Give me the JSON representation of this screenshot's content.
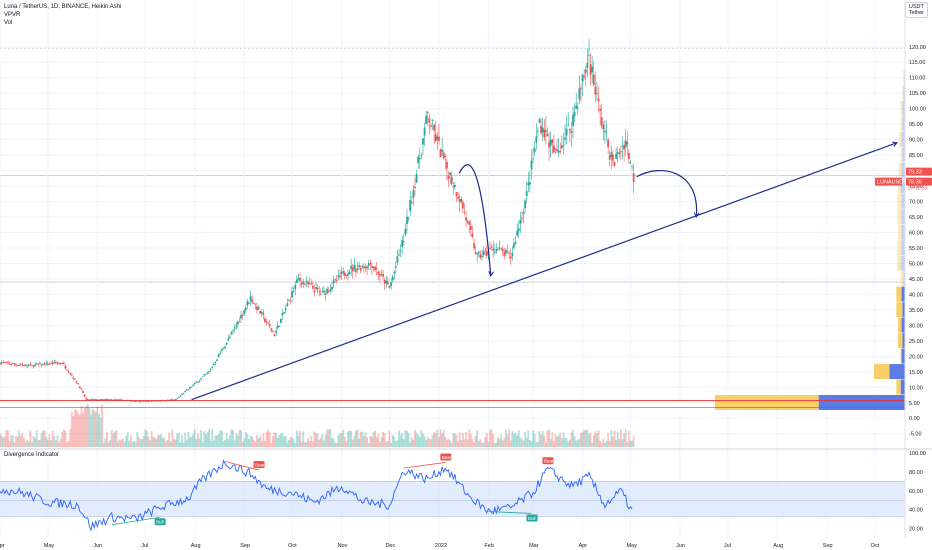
{
  "header": {
    "symbol_line": "Luna / TetherUS, 1D, BINANCE, Heikin Ashi",
    "indicator_1": "VPVR",
    "indicator_2": "Vol",
    "currency_badge_top": "USDT",
    "currency_badge_bottom": "Tether"
  },
  "colors": {
    "bull": "#26a69a",
    "bear": "#ef5350",
    "trendline": "#1c2a8c",
    "vp_blue": "#5b7be6",
    "vp_yellow": "#f9cf6a",
    "osc_line": "#2962ff",
    "osc_band": "#d6e4fb",
    "support_line": "#e53935"
  },
  "price_labels": {
    "last_price": "79.33",
    "symbol_tag": "LUNAUSDT",
    "symbol_price": "78.36",
    "countdown": "20:11:03"
  },
  "divergence": {
    "title": "Divergence Indicator",
    "bull_label": "Bull",
    "bear_label": "Bear"
  },
  "chart_data": [
    {
      "type": "candlestick",
      "title": "Luna / TetherUS, 1D, BINANCE, Heikin Ashi",
      "x_range": [
        "2021-04-01",
        "2022-10-20"
      ],
      "x_ticks": [
        "Apr",
        "May",
        "Jun",
        "Jul",
        "Aug",
        "Sep",
        "Oct",
        "Nov",
        "Dec",
        "2022",
        "Feb",
        "Mar",
        "Apr",
        "May",
        "Jun",
        "Jul",
        "Aug",
        "Sep",
        "Oct"
      ],
      "ylim": [
        -8,
        128
      ],
      "y_ticks": [
        120,
        115,
        110,
        105,
        100,
        95,
        90,
        85,
        80,
        75,
        70,
        65,
        60,
        55,
        50,
        45,
        40,
        35,
        30,
        25,
        20,
        15,
        10,
        5,
        0,
        -5
      ],
      "y_tick_labels": [
        "120.00",
        "115.00",
        "110.00",
        "105.00",
        "100.00",
        "95.00",
        "90.00",
        "85.00",
        "80.00",
        "75.00",
        "70.00",
        "65.00",
        "60.00",
        "55.00",
        "50.00",
        "45.00",
        "40.00",
        "35.00",
        "30.00",
        "25.00",
        "20.00",
        "15.00",
        "10.00",
        "5.00",
        "0.00",
        "-5.00"
      ],
      "close_path": [
        {
          "x": "2021-04-01",
          "y": 18
        },
        {
          "x": "2021-04-20",
          "y": 17
        },
        {
          "x": "2021-05-10",
          "y": 18
        },
        {
          "x": "2021-05-20",
          "y": 11
        },
        {
          "x": "2021-05-25",
          "y": 6
        },
        {
          "x": "2021-06-10",
          "y": 6
        },
        {
          "x": "2021-07-01",
          "y": 5.5
        },
        {
          "x": "2021-07-20",
          "y": 6
        },
        {
          "x": "2021-08-10",
          "y": 15
        },
        {
          "x": "2021-08-25",
          "y": 28
        },
        {
          "x": "2021-09-05",
          "y": 39
        },
        {
          "x": "2021-09-20",
          "y": 27
        },
        {
          "x": "2021-10-05",
          "y": 45
        },
        {
          "x": "2021-10-20",
          "y": 40
        },
        {
          "x": "2021-11-05",
          "y": 48
        },
        {
          "x": "2021-11-20",
          "y": 50
        },
        {
          "x": "2021-12-01",
          "y": 42
        },
        {
          "x": "2021-12-10",
          "y": 58
        },
        {
          "x": "2021-12-25",
          "y": 98
        },
        {
          "x": "2022-01-05",
          "y": 82
        },
        {
          "x": "2022-01-15",
          "y": 70
        },
        {
          "x": "2022-01-25",
          "y": 52
        },
        {
          "x": "2022-02-05",
          "y": 55
        },
        {
          "x": "2022-02-15",
          "y": 52
        },
        {
          "x": "2022-02-25",
          "y": 72
        },
        {
          "x": "2022-03-05",
          "y": 96
        },
        {
          "x": "2022-03-15",
          "y": 85
        },
        {
          "x": "2022-03-25",
          "y": 95
        },
        {
          "x": "2022-04-05",
          "y": 117
        },
        {
          "x": "2022-04-12",
          "y": 98
        },
        {
          "x": "2022-04-20",
          "y": 82
        },
        {
          "x": "2022-04-28",
          "y": 90
        },
        {
          "x": "2022-05-03",
          "y": 78
        }
      ],
      "trendline": [
        {
          "x": "2021-07-30",
          "y": 6
        },
        {
          "x": "2022-10-15",
          "y": 89
        }
      ],
      "support_level": 6,
      "volume_profile": {
        "price_bins": [
          5,
          10,
          15,
          20,
          25,
          30,
          35,
          40,
          45,
          50,
          55,
          60,
          65,
          70,
          75,
          80,
          85,
          90,
          95,
          100,
          105,
          110
        ],
        "up_volume": [
          100,
          5,
          18,
          4,
          3,
          4,
          3,
          4,
          2,
          5,
          4,
          4,
          4,
          4,
          5,
          4,
          3,
          4,
          3,
          3,
          2,
          1
        ],
        "down_volume": [
          120,
          5,
          18,
          1,
          5,
          4,
          7,
          6,
          3,
          4,
          5,
          4,
          5,
          5,
          3,
          3,
          2,
          3,
          2,
          2,
          1,
          1
        ]
      },
      "annotations": [
        "arrow: curved path down from late Jan peak to trendline",
        "arrow: curved path down from current price to trendline",
        "arrow: along trendline to right"
      ]
    },
    {
      "type": "line",
      "title": "Divergence Indicator",
      "ylim": [
        10,
        100
      ],
      "y_ticks": [
        100,
        80,
        60,
        40,
        20
      ],
      "y_tick_labels": [
        "100.00",
        "80.00",
        "60.00",
        "40.00",
        "20.00"
      ],
      "band": [
        33,
        70
      ],
      "midline": 50,
      "points": [
        {
          "x": "2021-04-01",
          "y": 62
        },
        {
          "x": "2021-04-15",
          "y": 58
        },
        {
          "x": "2021-05-01",
          "y": 48
        },
        {
          "x": "2021-05-20",
          "y": 45
        },
        {
          "x": "2021-05-28",
          "y": 22
        },
        {
          "x": "2021-06-10",
          "y": 32
        },
        {
          "x": "2021-06-25",
          "y": 30
        },
        {
          "x": "2021-07-10",
          "y": 42
        },
        {
          "x": "2021-07-28",
          "y": 52
        },
        {
          "x": "2021-08-05",
          "y": 70
        },
        {
          "x": "2021-08-20",
          "y": 90
        },
        {
          "x": "2021-09-05",
          "y": 78
        },
        {
          "x": "2021-09-15",
          "y": 62
        },
        {
          "x": "2021-10-01",
          "y": 58
        },
        {
          "x": "2021-10-15",
          "y": 48
        },
        {
          "x": "2021-11-01",
          "y": 65
        },
        {
          "x": "2021-11-15",
          "y": 48
        },
        {
          "x": "2021-12-01",
          "y": 45
        },
        {
          "x": "2021-12-10",
          "y": 82
        },
        {
          "x": "2021-12-25",
          "y": 72
        },
        {
          "x": "2022-01-05",
          "y": 85
        },
        {
          "x": "2022-01-20",
          "y": 54
        },
        {
          "x": "2022-02-01",
          "y": 38
        },
        {
          "x": "2022-02-15",
          "y": 42
        },
        {
          "x": "2022-03-01",
          "y": 58
        },
        {
          "x": "2022-03-10",
          "y": 83
        },
        {
          "x": "2022-03-25",
          "y": 65
        },
        {
          "x": "2022-04-05",
          "y": 75
        },
        {
          "x": "2022-04-15",
          "y": 45
        },
        {
          "x": "2022-04-25",
          "y": 60
        },
        {
          "x": "2022-05-03",
          "y": 35
        }
      ],
      "signals": [
        {
          "label": "Bull",
          "x": "2021-07-10",
          "y": 32
        },
        {
          "label": "Bear",
          "x": "2021-09-10",
          "y": 82
        },
        {
          "label": "Bear",
          "x": "2022-01-05",
          "y": 90
        },
        {
          "label": "Bull",
          "x": "2022-02-28",
          "y": 36
        },
        {
          "label": "Bear",
          "x": "2022-03-10",
          "y": 86
        }
      ]
    }
  ]
}
